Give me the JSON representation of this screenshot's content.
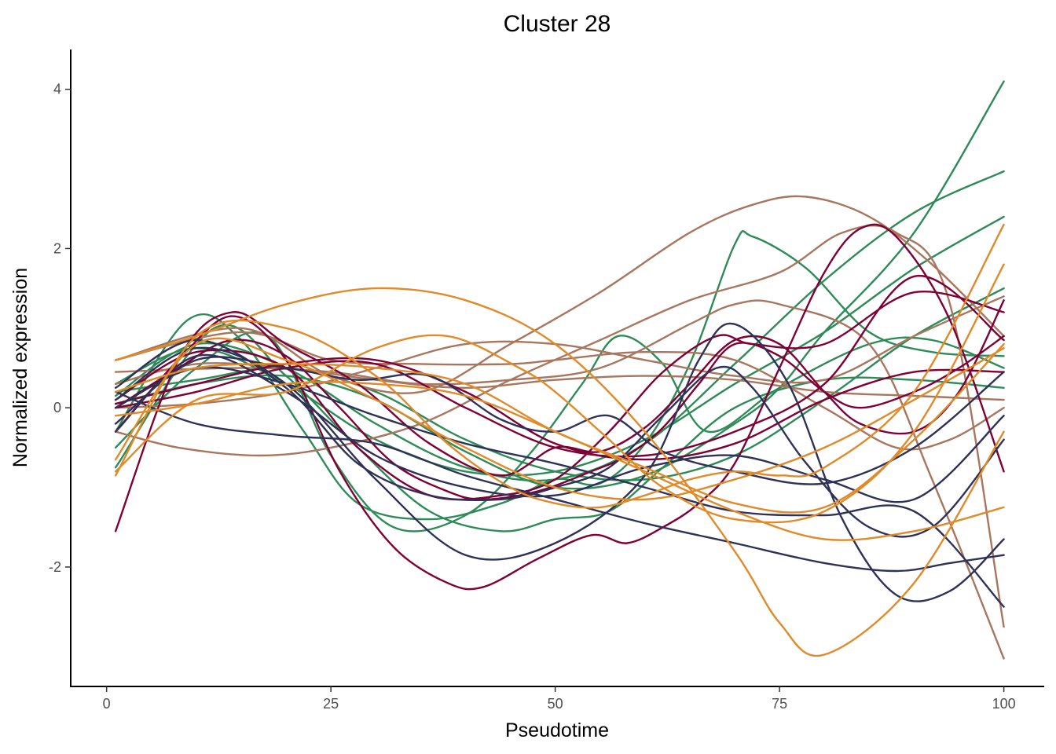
{
  "chart_data": {
    "type": "line",
    "title": "Cluster 28",
    "xlabel": "Pseudotime",
    "ylabel": "Normalized expression",
    "xlim": [
      -4,
      104.5
    ],
    "ylim": [
      -3.5,
      4.5
    ],
    "xticks": [
      0,
      25,
      50,
      75,
      100
    ],
    "yticks": [
      -2,
      0,
      2,
      4
    ],
    "xtick_labels": [
      "0",
      "25",
      "50",
      "75",
      "100"
    ],
    "ytick_labels": [
      "-2",
      "0",
      "2",
      "4"
    ],
    "grid": false,
    "legend": "none",
    "colors": {
      "green": "#2e8b57",
      "brown": "#a8765e",
      "crimson": "#7f0035",
      "navy": "#2f3157",
      "orange": "#e08a2a"
    },
    "series": [
      {
        "color": "green",
        "x": [
          1,
          10,
          20,
          30,
          40,
          50,
          60,
          70,
          75,
          80,
          90,
          100
        ],
        "y": [
          0.05,
          0.3,
          0.4,
          0.1,
          -0.55,
          -1.0,
          -0.85,
          -0.2,
          0.25,
          0.95,
          2.2,
          4.1
        ]
      },
      {
        "color": "green",
        "x": [
          1,
          10,
          20,
          30,
          40,
          50,
          60,
          70,
          80,
          90,
          100
        ],
        "y": [
          0.15,
          0.8,
          0.5,
          -0.2,
          -0.75,
          -0.9,
          -0.45,
          0.55,
          1.6,
          2.45,
          2.97
        ]
      },
      {
        "color": "green",
        "x": [
          1,
          10,
          20,
          30,
          40,
          50,
          60,
          70,
          80,
          90,
          100
        ],
        "y": [
          0.3,
          0.75,
          0.3,
          -0.4,
          -0.8,
          -0.8,
          -0.4,
          0.3,
          0.95,
          1.75,
          2.4
        ]
      },
      {
        "color": "green",
        "x": [
          1,
          10,
          20,
          30,
          40,
          50,
          60,
          70,
          80,
          90,
          100
        ],
        "y": [
          0.2,
          0.35,
          0.5,
          0.2,
          -0.4,
          -0.8,
          -0.9,
          -0.6,
          0.1,
          0.9,
          1.5
        ]
      },
      {
        "color": "green",
        "x": [
          1,
          9,
          15,
          22,
          28,
          36,
          44,
          50,
          55,
          60,
          65,
          70,
          72,
          78,
          85,
          92,
          100
        ],
        "y": [
          -0.3,
          1.1,
          0.85,
          -0.3,
          -1.2,
          -1.4,
          -1.2,
          -0.9,
          -0.95,
          -0.45,
          0.55,
          2.05,
          2.15,
          1.75,
          0.95,
          0.7,
          0.65
        ]
      },
      {
        "color": "green",
        "x": [
          1,
          10,
          18,
          25,
          32,
          40,
          47,
          53,
          57,
          62,
          67,
          75,
          85,
          92,
          100
        ],
        "y": [
          -0.5,
          0.5,
          0.9,
          -0.6,
          -1.5,
          -1.35,
          -0.6,
          0.3,
          0.9,
          0.55,
          -0.3,
          0.25,
          0.8,
          0.85,
          0.5
        ]
      },
      {
        "color": "green",
        "x": [
          1,
          12,
          20,
          28,
          36,
          44,
          50,
          56,
          62,
          70,
          80,
          90,
          100
        ],
        "y": [
          -0.75,
          1.0,
          0.4,
          -0.5,
          -1.3,
          -1.55,
          -1.4,
          -1.3,
          -0.75,
          0.0,
          0.35,
          0.35,
          0.25
        ]
      },
      {
        "color": "brown",
        "x": [
          1,
          15,
          25,
          35,
          45,
          55,
          65,
          72,
          78,
          85,
          92,
          100
        ],
        "y": [
          0.6,
          1.0,
          0.4,
          0.2,
          0.8,
          1.45,
          2.2,
          2.55,
          2.65,
          2.4,
          1.8,
          0.9
        ]
      },
      {
        "color": "brown",
        "x": [
          1,
          8,
          17,
          25,
          35,
          45,
          55,
          65,
          75,
          82,
          88,
          94,
          100
        ],
        "y": [
          -0.3,
          -0.5,
          -0.6,
          -0.5,
          -0.2,
          0.35,
          0.85,
          1.35,
          1.7,
          2.2,
          2.2,
          1.3,
          -2.75
        ]
      },
      {
        "color": "brown",
        "x": [
          1,
          15,
          25,
          35,
          45,
          55,
          65,
          70,
          75,
          85,
          92,
          100
        ],
        "y": [
          0.45,
          0.5,
          0.45,
          0.3,
          0.35,
          0.5,
          1.05,
          1.3,
          1.3,
          0.8,
          -0.9,
          -3.15
        ]
      },
      {
        "color": "brown",
        "x": [
          1,
          15,
          25,
          35,
          45,
          50,
          60,
          70,
          80,
          88,
          94,
          100
        ],
        "y": [
          0.6,
          0.95,
          0.6,
          0.55,
          0.55,
          0.6,
          0.7,
          0.6,
          0.0,
          -0.5,
          -0.4,
          0.0
        ]
      },
      {
        "color": "brown",
        "x": [
          1,
          10,
          20,
          30,
          40,
          50,
          60,
          70,
          80,
          90,
          100
        ],
        "y": [
          0.3,
          0.55,
          0.5,
          0.35,
          0.25,
          0.35,
          0.4,
          0.35,
          0.2,
          0.15,
          0.1
        ]
      },
      {
        "color": "brown",
        "x": [
          1,
          10,
          20,
          30,
          40,
          50,
          60,
          70,
          80,
          90,
          100
        ],
        "y": [
          0.0,
          0.05,
          0.2,
          0.5,
          0.8,
          0.8,
          0.6,
          0.4,
          0.35,
          0.9,
          1.4
        ]
      },
      {
        "color": "crimson",
        "x": [
          1,
          8,
          14,
          20,
          28,
          36,
          44,
          50,
          55,
          60,
          65,
          70,
          75,
          80,
          84,
          90,
          95,
          100
        ],
        "y": [
          -1.55,
          0.6,
          1.2,
          0.8,
          0.3,
          -0.45,
          -0.85,
          -0.5,
          -0.55,
          -0.25,
          0.3,
          0.85,
          0.8,
          0.2,
          -0.2,
          -0.3,
          0.2,
          1.35
        ]
      },
      {
        "color": "crimson",
        "x": [
          1,
          8,
          14,
          20,
          26,
          32,
          38,
          42,
          48,
          54,
          58,
          62,
          66,
          70,
          75,
          80,
          84,
          88,
          94,
          100
        ],
        "y": [
          -0.3,
          0.6,
          1.15,
          0.6,
          -0.8,
          -1.75,
          -2.2,
          -2.25,
          -1.9,
          -1.6,
          -1.7,
          -1.5,
          -1.2,
          -0.7,
          0.5,
          1.7,
          2.25,
          2.15,
          1.1,
          -0.8
        ]
      },
      {
        "color": "crimson",
        "x": [
          1,
          8,
          14,
          20,
          26,
          32,
          38,
          42,
          48,
          54,
          58,
          62,
          66,
          70,
          75,
          80,
          84,
          90,
          95,
          100
        ],
        "y": [
          0.0,
          0.5,
          0.85,
          0.65,
          0.0,
          -0.7,
          -1.05,
          -1.15,
          -1.05,
          -0.8,
          -0.6,
          -0.25,
          0.3,
          0.8,
          0.65,
          0.2,
          0.0,
          0.2,
          0.5,
          0.9
        ]
      },
      {
        "color": "crimson",
        "x": [
          1,
          10,
          20,
          30,
          40,
          50,
          60,
          70,
          80,
          90,
          100
        ],
        "y": [
          0.0,
          0.2,
          0.5,
          0.55,
          0.0,
          -0.5,
          -0.6,
          -0.3,
          0.3,
          1.65,
          0.85
        ]
      },
      {
        "color": "crimson",
        "x": [
          1,
          10,
          20,
          28,
          36,
          44,
          50,
          56,
          62,
          68,
          72,
          80,
          90,
          100
        ],
        "y": [
          0.1,
          0.7,
          0.5,
          -0.5,
          -1.1,
          -1.1,
          -0.9,
          -0.3,
          0.45,
          0.9,
          0.8,
          0.8,
          1.45,
          1.2
        ]
      },
      {
        "color": "crimson",
        "x": [
          1,
          10,
          20,
          30,
          40,
          50,
          60,
          70,
          80,
          90,
          100
        ],
        "y": [
          0.05,
          0.3,
          0.55,
          0.6,
          0.2,
          -0.45,
          -0.65,
          -0.45,
          0.1,
          0.45,
          0.45
        ]
      },
      {
        "color": "navy",
        "x": [
          1,
          10,
          20,
          30,
          40,
          50,
          60,
          70,
          80,
          88,
          94,
          100
        ],
        "y": [
          0.2,
          -0.2,
          -0.35,
          -0.45,
          -0.85,
          -1.15,
          -1.45,
          -1.7,
          -1.95,
          -2.05,
          -1.95,
          -1.85
        ]
      },
      {
        "color": "navy",
        "x": [
          1,
          10,
          20,
          30,
          40,
          50,
          60,
          70,
          80,
          90,
          100
        ],
        "y": [
          -0.3,
          0.65,
          0.2,
          -0.6,
          -1.0,
          -1.1,
          -0.75,
          -0.6,
          -0.9,
          -1.15,
          -0.1
        ]
      },
      {
        "color": "navy",
        "x": [
          1,
          10,
          20,
          30,
          40,
          50,
          60,
          66,
          70,
          76,
          82,
          88,
          94,
          100
        ],
        "y": [
          0.1,
          0.75,
          0.3,
          -0.9,
          -1.85,
          -1.7,
          -0.85,
          0.6,
          1.05,
          0.3,
          -1.4,
          -2.35,
          -2.3,
          -1.65
        ]
      },
      {
        "color": "navy",
        "x": [
          1,
          10,
          20,
          28,
          36,
          44,
          50,
          56,
          62,
          68,
          72,
          78,
          85,
          92,
          100
        ],
        "y": [
          0.25,
          0.85,
          0.25,
          -0.7,
          -1.1,
          -1.15,
          -1.0,
          -0.75,
          -0.1,
          0.5,
          0.25,
          -0.7,
          -1.5,
          -1.5,
          -0.4
        ]
      },
      {
        "color": "navy",
        "x": [
          1,
          10,
          20,
          28,
          36,
          44,
          50,
          56,
          62,
          70,
          80,
          90,
          100
        ],
        "y": [
          -0.2,
          0.6,
          0.5,
          0.35,
          0.4,
          -0.15,
          -0.3,
          -0.1,
          -0.55,
          -0.8,
          -0.95,
          -0.5,
          0.45
        ]
      },
      {
        "color": "navy",
        "x": [
          1,
          10,
          20,
          30,
          40,
          50,
          60,
          70,
          80,
          90,
          100
        ],
        "y": [
          0.0,
          0.5,
          0.3,
          -0.1,
          -0.45,
          -0.7,
          -1.0,
          -1.3,
          -1.35,
          -1.3,
          -2.5
        ]
      },
      {
        "color": "orange",
        "x": [
          1,
          10,
          20,
          30,
          40,
          50,
          60,
          70,
          75,
          80,
          90,
          100
        ],
        "y": [
          0.6,
          0.9,
          1.3,
          1.5,
          1.35,
          0.8,
          -0.3,
          -1.8,
          -2.7,
          -3.1,
          -2.2,
          -0.3
        ]
      },
      {
        "color": "orange",
        "x": [
          1,
          10,
          20,
          30,
          38,
          45,
          50,
          55,
          60,
          65,
          70,
          75,
          80,
          90,
          100
        ],
        "y": [
          -0.85,
          0.9,
          1.0,
          0.4,
          -0.45,
          -1.0,
          -1.2,
          -1.25,
          -1.1,
          -0.9,
          -0.8,
          -0.85,
          -0.75,
          0.2,
          2.3
        ]
      },
      {
        "color": "orange",
        "x": [
          1,
          10,
          20,
          30,
          38,
          46,
          50,
          56,
          62,
          70,
          80,
          90,
          100
        ],
        "y": [
          -0.8,
          0.1,
          0.2,
          0.75,
          0.9,
          0.5,
          0.2,
          -0.4,
          -1.0,
          -1.4,
          -1.3,
          -0.3,
          1.8
        ]
      },
      {
        "color": "orange",
        "x": [
          1,
          10,
          20,
          30,
          40,
          50,
          60,
          70,
          80,
          90,
          100
        ],
        "y": [
          -0.65,
          0.8,
          0.6,
          0.1,
          -0.5,
          -1.0,
          -1.15,
          -0.9,
          -0.5,
          0.1,
          0.75
        ]
      },
      {
        "color": "orange",
        "x": [
          1,
          10,
          20,
          30,
          40,
          50,
          60,
          70,
          80,
          90,
          100
        ],
        "y": [
          -0.1,
          0.05,
          0.3,
          0.3,
          0.15,
          -0.3,
          -0.8,
          -1.3,
          -1.65,
          -1.55,
          -1.25
        ]
      },
      {
        "color": "orange",
        "x": [
          1,
          10,
          20,
          30,
          40,
          50,
          60,
          70,
          80,
          90,
          100
        ],
        "y": [
          0.2,
          0.5,
          0.55,
          0.5,
          0.3,
          -0.3,
          -0.75,
          -1.2,
          -1.25,
          -0.4,
          0.8
        ]
      }
    ]
  }
}
